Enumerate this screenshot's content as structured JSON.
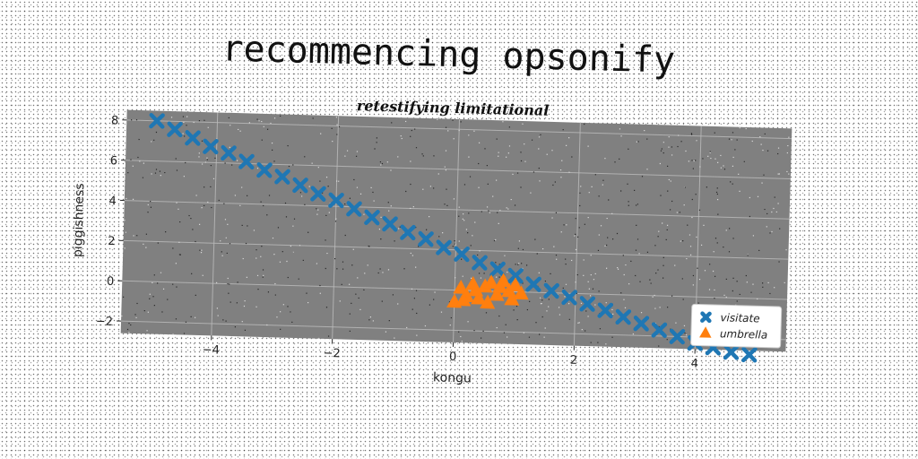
{
  "chart_data": {
    "type": "scatter",
    "title": "recommencing opsonify",
    "subtitle": "retestifying limitational",
    "xlabel": "kongu",
    "ylabel": "piggishness",
    "xlim": [
      -5.5,
      5.5
    ],
    "ylim": [
      -2.6,
      8.5
    ],
    "xticks": [
      -4,
      -2,
      0,
      2,
      4
    ],
    "yticks": [
      -2,
      0,
      2,
      4,
      6,
      8
    ],
    "xtick_labels": [
      "−4",
      "−2",
      "0",
      "2",
      "4"
    ],
    "ytick_labels": [
      "−2",
      "0",
      "2",
      "4",
      "6",
      "8"
    ],
    "grid": true,
    "legend_position": "lower-right",
    "plot_background": "#808080",
    "series": [
      {
        "name": "visitate",
        "marker": "x",
        "color": "#1f77b4",
        "x": [
          -5.0,
          -4.7,
          -4.4,
          -4.1,
          -3.8,
          -3.5,
          -3.2,
          -2.9,
          -2.6,
          -2.3,
          -2.0,
          -1.7,
          -1.4,
          -1.1,
          -0.8,
          -0.5,
          -0.2,
          0.1,
          0.4,
          0.7,
          1.0,
          1.3,
          1.6,
          1.9,
          2.2,
          2.5,
          2.8,
          3.1,
          3.4,
          3.7,
          4.0,
          4.3,
          4.6,
          4.9
        ],
        "y": [
          8.0,
          7.6,
          7.2,
          6.8,
          6.5,
          6.1,
          5.7,
          5.4,
          5.0,
          4.6,
          4.3,
          3.9,
          3.5,
          3.2,
          2.8,
          2.5,
          2.1,
          1.8,
          1.4,
          1.1,
          0.8,
          0.4,
          0.1,
          -0.2,
          -0.5,
          -0.8,
          -1.1,
          -1.4,
          -1.7,
          -2.0,
          -2.3,
          -2.5,
          -2.7,
          -2.8
        ]
      },
      {
        "name": "umbrella",
        "marker": "triangle",
        "color": "#ff7f0e",
        "x": [
          0.0,
          0.1,
          0.2,
          0.3,
          0.4,
          0.5,
          0.6,
          0.7,
          0.8,
          0.9,
          1.0,
          1.1,
          0.15,
          0.35,
          0.55,
          0.75,
          0.95
        ],
        "y": [
          -0.6,
          0.1,
          -0.3,
          0.3,
          -0.4,
          0.2,
          0.4,
          -0.2,
          0.5,
          0.0,
          0.3,
          -0.1,
          -0.5,
          0.0,
          -0.6,
          0.2,
          -0.4
        ]
      }
    ]
  }
}
